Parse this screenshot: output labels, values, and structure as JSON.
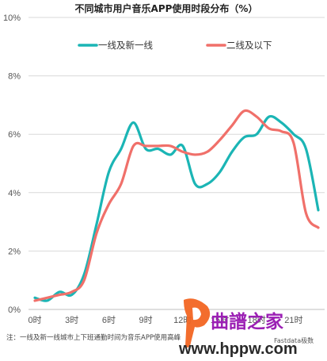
{
  "chart_data": {
    "type": "line",
    "title": "不同城市用户音乐APP使用时段分布（%）",
    "x": [
      0,
      1,
      2,
      3,
      4,
      5,
      6,
      7,
      8,
      9,
      10,
      11,
      12,
      13,
      14,
      15,
      16,
      17,
      18,
      19,
      20,
      21,
      22,
      23
    ],
    "x_tick_labels": [
      "0时",
      "3时",
      "6时",
      "9时",
      "12时",
      "15时",
      "18时",
      "21时"
    ],
    "x_tick_positions": [
      0,
      3,
      6,
      9,
      12,
      15,
      18,
      21
    ],
    "y_tick_labels": [
      "0%",
      "2%",
      "4%",
      "6%",
      "8%",
      "10%"
    ],
    "ylim": [
      0,
      10
    ],
    "series": [
      {
        "name": "一线及新一线",
        "color": "#1bb5b5",
        "values": [
          0.4,
          0.3,
          0.6,
          0.5,
          1.2,
          2.9,
          4.7,
          5.5,
          6.4,
          5.5,
          5.5,
          5.3,
          5.6,
          4.3,
          4.3,
          4.7,
          5.4,
          5.9,
          6.0,
          6.6,
          6.4,
          6.0,
          5.5,
          3.4
        ]
      },
      {
        "name": "二线及以下",
        "color": "#f0706a",
        "values": [
          0.3,
          0.4,
          0.5,
          0.6,
          1.0,
          2.6,
          3.6,
          4.3,
          5.6,
          5.6,
          5.6,
          5.6,
          5.4,
          5.3,
          5.4,
          5.8,
          6.3,
          6.8,
          6.6,
          6.2,
          6.1,
          5.7,
          3.3,
          2.8
        ]
      }
    ],
    "legend_position": "top",
    "grid": true,
    "note": "注：一线及新一线城市上下班通勤时间为音乐APP使用高峰"
  },
  "watermark": {
    "brand_text": "曲譜之家",
    "url_text": "www.hppw.com",
    "small_text": "Fastdata极数",
    "logo_color": "#f26522",
    "brand_color": "#9b1fb4"
  }
}
